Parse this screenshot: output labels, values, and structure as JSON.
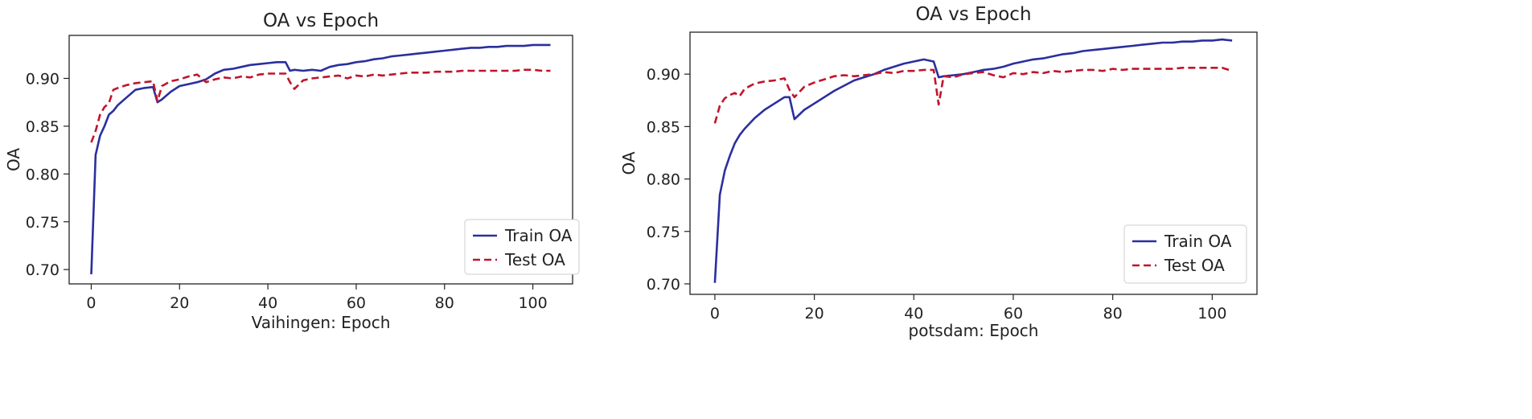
{
  "chart_data": [
    {
      "type": "line",
      "title": "OA vs Epoch",
      "xlabel": "Vaihingen: Epoch",
      "ylabel": "OA",
      "xlim": [
        -5,
        109
      ],
      "ylim": [
        0.685,
        0.945
      ],
      "xticks": [
        0,
        20,
        40,
        60,
        80,
        100
      ],
      "yticks": [
        0.7,
        0.75,
        0.8,
        0.85,
        0.9
      ],
      "ytick_labels": [
        "0.70",
        "0.75",
        "0.80",
        "0.85",
        "0.90"
      ],
      "xtick_labels": [
        "0",
        "20",
        "40",
        "60",
        "80",
        "100"
      ],
      "legend_position": "lower-right",
      "series": [
        {
          "name": "Train OA",
          "style": "solid",
          "color": "#2b2f9e",
          "x": [
            0,
            1,
            2,
            3,
            4,
            5,
            6,
            8,
            10,
            12,
            14,
            15,
            16,
            18,
            20,
            22,
            24,
            26,
            28,
            30,
            32,
            34,
            36,
            38,
            40,
            42,
            44,
            45,
            46,
            48,
            50,
            52,
            54,
            56,
            58,
            60,
            62,
            64,
            66,
            68,
            70,
            72,
            74,
            76,
            78,
            80,
            82,
            84,
            86,
            88,
            90,
            92,
            94,
            96,
            98,
            100,
            102,
            104
          ],
          "values": [
            0.695,
            0.82,
            0.84,
            0.85,
            0.862,
            0.866,
            0.872,
            0.88,
            0.888,
            0.89,
            0.891,
            0.875,
            0.878,
            0.886,
            0.892,
            0.894,
            0.896,
            0.899,
            0.905,
            0.909,
            0.91,
            0.912,
            0.914,
            0.915,
            0.916,
            0.917,
            0.917,
            0.908,
            0.909,
            0.908,
            0.909,
            0.908,
            0.912,
            0.914,
            0.915,
            0.917,
            0.918,
            0.92,
            0.921,
            0.923,
            0.924,
            0.925,
            0.926,
            0.927,
            0.928,
            0.929,
            0.93,
            0.931,
            0.932,
            0.932,
            0.933,
            0.933,
            0.934,
            0.934,
            0.934,
            0.935,
            0.935,
            0.935
          ]
        },
        {
          "name": "Test OA",
          "style": "dashed",
          "color": "#c0142d",
          "x": [
            0,
            1,
            2,
            3,
            4,
            5,
            6,
            8,
            10,
            12,
            14,
            15,
            16,
            18,
            20,
            22,
            24,
            26,
            28,
            30,
            32,
            34,
            36,
            38,
            40,
            42,
            44,
            45,
            46,
            48,
            50,
            52,
            54,
            56,
            58,
            60,
            62,
            64,
            66,
            68,
            70,
            72,
            74,
            76,
            78,
            80,
            82,
            84,
            86,
            88,
            90,
            92,
            94,
            96,
            98,
            100,
            102,
            104
          ],
          "values": [
            0.833,
            0.845,
            0.862,
            0.87,
            0.874,
            0.888,
            0.89,
            0.893,
            0.895,
            0.896,
            0.897,
            0.876,
            0.892,
            0.897,
            0.899,
            0.902,
            0.904,
            0.896,
            0.899,
            0.901,
            0.9,
            0.902,
            0.901,
            0.904,
            0.905,
            0.905,
            0.905,
            0.896,
            0.889,
            0.898,
            0.9,
            0.901,
            0.902,
            0.903,
            0.9,
            0.903,
            0.902,
            0.904,
            0.903,
            0.904,
            0.905,
            0.906,
            0.906,
            0.906,
            0.907,
            0.907,
            0.907,
            0.908,
            0.908,
            0.908,
            0.908,
            0.908,
            0.908,
            0.908,
            0.909,
            0.909,
            0.908,
            0.908
          ]
        }
      ]
    },
    {
      "type": "line",
      "title": "OA vs Epoch",
      "xlabel": "potsdam: Epoch",
      "ylabel": "OA",
      "xlim": [
        -5,
        109
      ],
      "ylim": [
        0.69,
        0.94
      ],
      "xticks": [
        0,
        20,
        40,
        60,
        80,
        100
      ],
      "yticks": [
        0.7,
        0.75,
        0.8,
        0.85,
        0.9
      ],
      "ytick_labels": [
        "0.70",
        "0.75",
        "0.80",
        "0.85",
        "0.90"
      ],
      "xtick_labels": [
        "0",
        "20",
        "40",
        "60",
        "80",
        "100"
      ],
      "legend_position": "lower-right",
      "series": [
        {
          "name": "Train OA",
          "style": "solid",
          "color": "#2b2f9e",
          "x": [
            0,
            1,
            2,
            3,
            4,
            5,
            6,
            8,
            10,
            12,
            14,
            15,
            16,
            18,
            20,
            22,
            24,
            26,
            28,
            30,
            32,
            34,
            36,
            38,
            40,
            42,
            44,
            45,
            46,
            48,
            50,
            52,
            54,
            56,
            58,
            60,
            62,
            64,
            66,
            68,
            70,
            72,
            74,
            76,
            78,
            80,
            82,
            84,
            86,
            88,
            90,
            92,
            94,
            96,
            98,
            100,
            102,
            104
          ],
          "values": [
            0.701,
            0.785,
            0.808,
            0.822,
            0.834,
            0.842,
            0.848,
            0.858,
            0.866,
            0.872,
            0.878,
            0.878,
            0.857,
            0.866,
            0.872,
            0.878,
            0.884,
            0.889,
            0.894,
            0.897,
            0.9,
            0.904,
            0.907,
            0.91,
            0.912,
            0.914,
            0.912,
            0.897,
            0.898,
            0.899,
            0.9,
            0.902,
            0.904,
            0.905,
            0.907,
            0.91,
            0.912,
            0.914,
            0.915,
            0.917,
            0.919,
            0.92,
            0.922,
            0.923,
            0.924,
            0.925,
            0.926,
            0.927,
            0.928,
            0.929,
            0.93,
            0.93,
            0.931,
            0.931,
            0.932,
            0.932,
            0.933,
            0.932
          ]
        },
        {
          "name": "Test OA",
          "style": "dashed",
          "color": "#c0142d",
          "x": [
            0,
            1,
            2,
            3,
            4,
            5,
            6,
            8,
            10,
            12,
            14,
            15,
            16,
            18,
            20,
            22,
            24,
            26,
            28,
            30,
            32,
            34,
            36,
            38,
            40,
            42,
            44,
            45,
            46,
            48,
            50,
            52,
            54,
            56,
            58,
            60,
            62,
            64,
            66,
            68,
            70,
            72,
            74,
            76,
            78,
            80,
            82,
            84,
            86,
            88,
            90,
            92,
            94,
            96,
            98,
            100,
            102,
            104
          ],
          "values": [
            0.853,
            0.87,
            0.877,
            0.88,
            0.882,
            0.879,
            0.886,
            0.891,
            0.893,
            0.894,
            0.896,
            0.885,
            0.878,
            0.888,
            0.892,
            0.895,
            0.898,
            0.899,
            0.898,
            0.899,
            0.9,
            0.902,
            0.901,
            0.903,
            0.903,
            0.904,
            0.904,
            0.871,
            0.898,
            0.897,
            0.9,
            0.901,
            0.902,
            0.899,
            0.897,
            0.901,
            0.9,
            0.902,
            0.901,
            0.903,
            0.902,
            0.903,
            0.904,
            0.904,
            0.903,
            0.905,
            0.904,
            0.905,
            0.905,
            0.905,
            0.905,
            0.905,
            0.906,
            0.906,
            0.906,
            0.906,
            0.906,
            0.903
          ]
        }
      ]
    }
  ]
}
